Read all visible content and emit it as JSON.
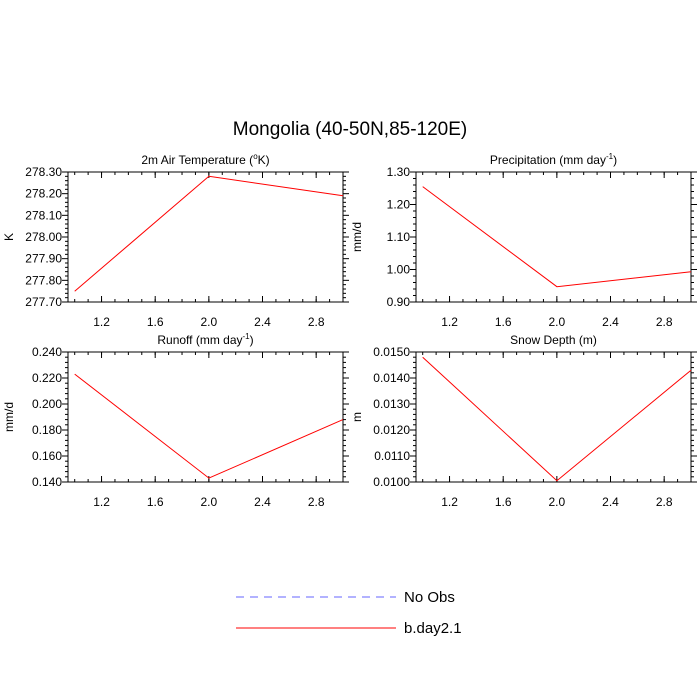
{
  "figure": {
    "title": "Mongolia (40-50N,85-120E)"
  },
  "colors": {
    "no_obs": "#6666ff",
    "model": "#ff0000"
  },
  "legend": {
    "items": [
      {
        "label": "No Obs",
        "style": "dashed",
        "color_key": "no_obs"
      },
      {
        "label": "b.day2.1",
        "style": "solid",
        "color_key": "model"
      }
    ]
  },
  "chart_data": [
    {
      "type": "line",
      "title_parts": {
        "pre": "2m Air Temperature (",
        "sup": "o",
        "post": "K)"
      },
      "ylabel": "K",
      "xlim": [
        0.95,
        3.0
      ],
      "ylim": [
        277.7,
        278.3
      ],
      "xticks": [
        "1.2",
        "1.6",
        "2.0",
        "2.4",
        "2.8"
      ],
      "xtick_values": [
        1.2,
        1.6,
        2.0,
        2.4,
        2.8
      ],
      "yticks": [
        "277.70",
        "277.80",
        "277.90",
        "278.00",
        "278.10",
        "278.20",
        "278.30"
      ],
      "ytick_values": [
        277.7,
        277.8,
        277.9,
        278.0,
        278.1,
        278.2,
        278.3
      ],
      "series": [
        {
          "name": "b.day2.1",
          "x": [
            1.0,
            2.0,
            3.0
          ],
          "y": [
            277.75,
            278.28,
            278.19
          ]
        }
      ]
    },
    {
      "type": "line",
      "title_parts": {
        "pre": "Precipitation (mm day",
        "sup": "-1",
        "post": ")"
      },
      "ylabel": "mm/d",
      "xlim": [
        0.95,
        3.0
      ],
      "ylim": [
        0.9,
        1.3
      ],
      "xticks": [
        "1.2",
        "1.6",
        "2.0",
        "2.4",
        "2.8"
      ],
      "xtick_values": [
        1.2,
        1.6,
        2.0,
        2.4,
        2.8
      ],
      "yticks": [
        "0.90",
        "1.00",
        "1.10",
        "1.20",
        "1.30"
      ],
      "ytick_values": [
        0.9,
        1.0,
        1.1,
        1.2,
        1.3
      ],
      "series": [
        {
          "name": "b.day2.1",
          "x": [
            1.0,
            2.0,
            3.0
          ],
          "y": [
            1.255,
            0.947,
            0.993
          ]
        }
      ]
    },
    {
      "type": "line",
      "title_parts": {
        "pre": "Runoff (mm day",
        "sup": "-1",
        "post": ")"
      },
      "ylabel": "mm/d",
      "xlim": [
        0.95,
        3.0
      ],
      "ylim": [
        0.14,
        0.24
      ],
      "xticks": [
        "1.2",
        "1.6",
        "2.0",
        "2.4",
        "2.8"
      ],
      "xtick_values": [
        1.2,
        1.6,
        2.0,
        2.4,
        2.8
      ],
      "yticks": [
        "0.140",
        "0.160",
        "0.180",
        "0.200",
        "0.220",
        "0.240"
      ],
      "ytick_values": [
        0.14,
        0.16,
        0.18,
        0.2,
        0.22,
        0.24
      ],
      "series": [
        {
          "name": "b.day2.1",
          "x": [
            1.0,
            2.0,
            3.0
          ],
          "y": [
            0.223,
            0.143,
            0.188
          ]
        }
      ]
    },
    {
      "type": "line",
      "title_parts": {
        "pre": "Snow Depth (m)",
        "sup": "",
        "post": ""
      },
      "ylabel": "m",
      "xlim": [
        0.95,
        3.0
      ],
      "ylim": [
        0.01,
        0.015
      ],
      "xticks": [
        "1.2",
        "1.6",
        "2.0",
        "2.4",
        "2.8"
      ],
      "xtick_values": [
        1.2,
        1.6,
        2.0,
        2.4,
        2.8
      ],
      "yticks": [
        "0.0100",
        "0.0110",
        "0.0120",
        "0.0130",
        "0.0140",
        "0.0150"
      ],
      "ytick_values": [
        0.01,
        0.011,
        0.012,
        0.013,
        0.014,
        0.015
      ],
      "series": [
        {
          "name": "b.day2.1",
          "x": [
            1.0,
            2.0,
            3.0
          ],
          "y": [
            0.0148,
            0.01005,
            0.0143
          ]
        }
      ]
    }
  ]
}
